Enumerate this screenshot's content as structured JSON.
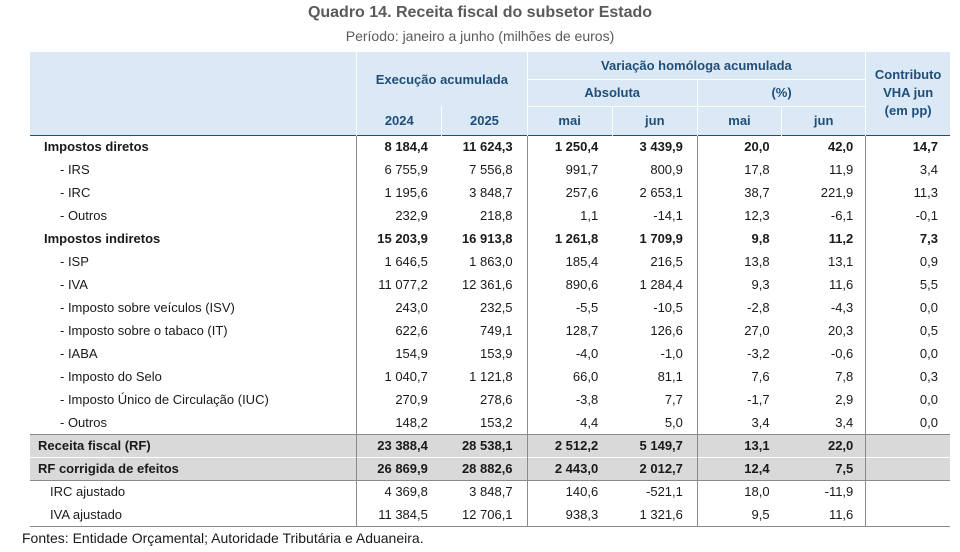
{
  "title": "Quadro 14. Receita fiscal do subsetor Estado",
  "subtitle": "Período: janeiro a junho (milhões de euros)",
  "header": {
    "execucao": "Execução acumulada",
    "variacao": "Variação homóloga acumulada",
    "absoluta": "Absoluta",
    "percent": "(%)",
    "contributo": [
      "Contributo",
      "VHA jun",
      "(em pp)"
    ],
    "years": [
      "2024",
      "2025"
    ],
    "months": [
      "mai",
      "jun",
      "mai",
      "jun"
    ]
  },
  "rows": [
    {
      "label": "Impostos diretos",
      "values": [
        "8 184,4",
        "11 624,3",
        "1 250,4",
        "3 439,9",
        "20,0",
        "42,0",
        "14,7"
      ]
    },
    {
      "label": "- IRS",
      "values": [
        "6 755,9",
        "7 556,8",
        "991,7",
        "800,9",
        "17,8",
        "11,9",
        "3,4"
      ]
    },
    {
      "label": "- IRC",
      "values": [
        "1 195,6",
        "3 848,7",
        "257,6",
        "2 653,1",
        "38,7",
        "221,9",
        "11,3"
      ]
    },
    {
      "label": "- Outros",
      "values": [
        "232,9",
        "218,8",
        "1,1",
        "-14,1",
        "12,3",
        "-6,1",
        "-0,1"
      ]
    },
    {
      "label": "Impostos indiretos",
      "values": [
        "15 203,9",
        "16 913,8",
        "1 261,8",
        "1 709,9",
        "9,8",
        "11,2",
        "7,3"
      ]
    },
    {
      "label": "- ISP",
      "values": [
        "1 646,5",
        "1 863,0",
        "185,4",
        "216,5",
        "13,8",
        "13,1",
        "0,9"
      ]
    },
    {
      "label": "- IVA",
      "values": [
        "11 077,2",
        "12 361,6",
        "890,6",
        "1 284,4",
        "9,3",
        "11,6",
        "5,5"
      ]
    },
    {
      "label": "- Imposto sobre veículos (ISV)",
      "values": [
        "243,0",
        "232,5",
        "-5,5",
        "-10,5",
        "-2,8",
        "-4,3",
        "0,0"
      ]
    },
    {
      "label": "- Imposto sobre o tabaco (IT)",
      "values": [
        "622,6",
        "749,1",
        "128,7",
        "126,6",
        "27,0",
        "20,3",
        "0,5"
      ]
    },
    {
      "label": "- IABA",
      "values": [
        "154,9",
        "153,9",
        "-4,0",
        "-1,0",
        "-3,2",
        "-0,6",
        "0,0"
      ]
    },
    {
      "label": "- Imposto do Selo",
      "values": [
        "1 040,7",
        "1 121,8",
        "66,0",
        "81,1",
        "7,6",
        "7,8",
        "0,3"
      ]
    },
    {
      "label": "- Imposto Único de Circulação (IUC)",
      "values": [
        "270,9",
        "278,6",
        "-3,8",
        "7,7",
        "-1,7",
        "2,9",
        "0,0"
      ]
    },
    {
      "label": "- Outros",
      "values": [
        "148,2",
        "153,2",
        "4,4",
        "5,0",
        "3,4",
        "3,4",
        "0,0"
      ]
    },
    {
      "label": "Receita fiscal (RF)",
      "values": [
        "23 388,4",
        "28 538,1",
        "2 512,2",
        "5 149,7",
        "13,1",
        "22,0",
        ""
      ]
    },
    {
      "label": "RF corrigida de efeitos",
      "values": [
        "26 869,9",
        "28 882,6",
        "2 443,0",
        "2 012,7",
        "12,4",
        "7,5",
        ""
      ]
    },
    {
      "label": "IRC ajustado",
      "values": [
        "4 369,8",
        "3 848,7",
        "140,6",
        "-521,1",
        "18,0",
        "-11,9",
        ""
      ]
    },
    {
      "label": "IVA ajustado",
      "values": [
        "11 384,5",
        "12 706,1",
        "938,3",
        "1 321,6",
        "9,5",
        "11,6",
        ""
      ]
    }
  ],
  "source": "Fontes: Entidade Orçamental; Autoridade Tributária e Aduaneira."
}
